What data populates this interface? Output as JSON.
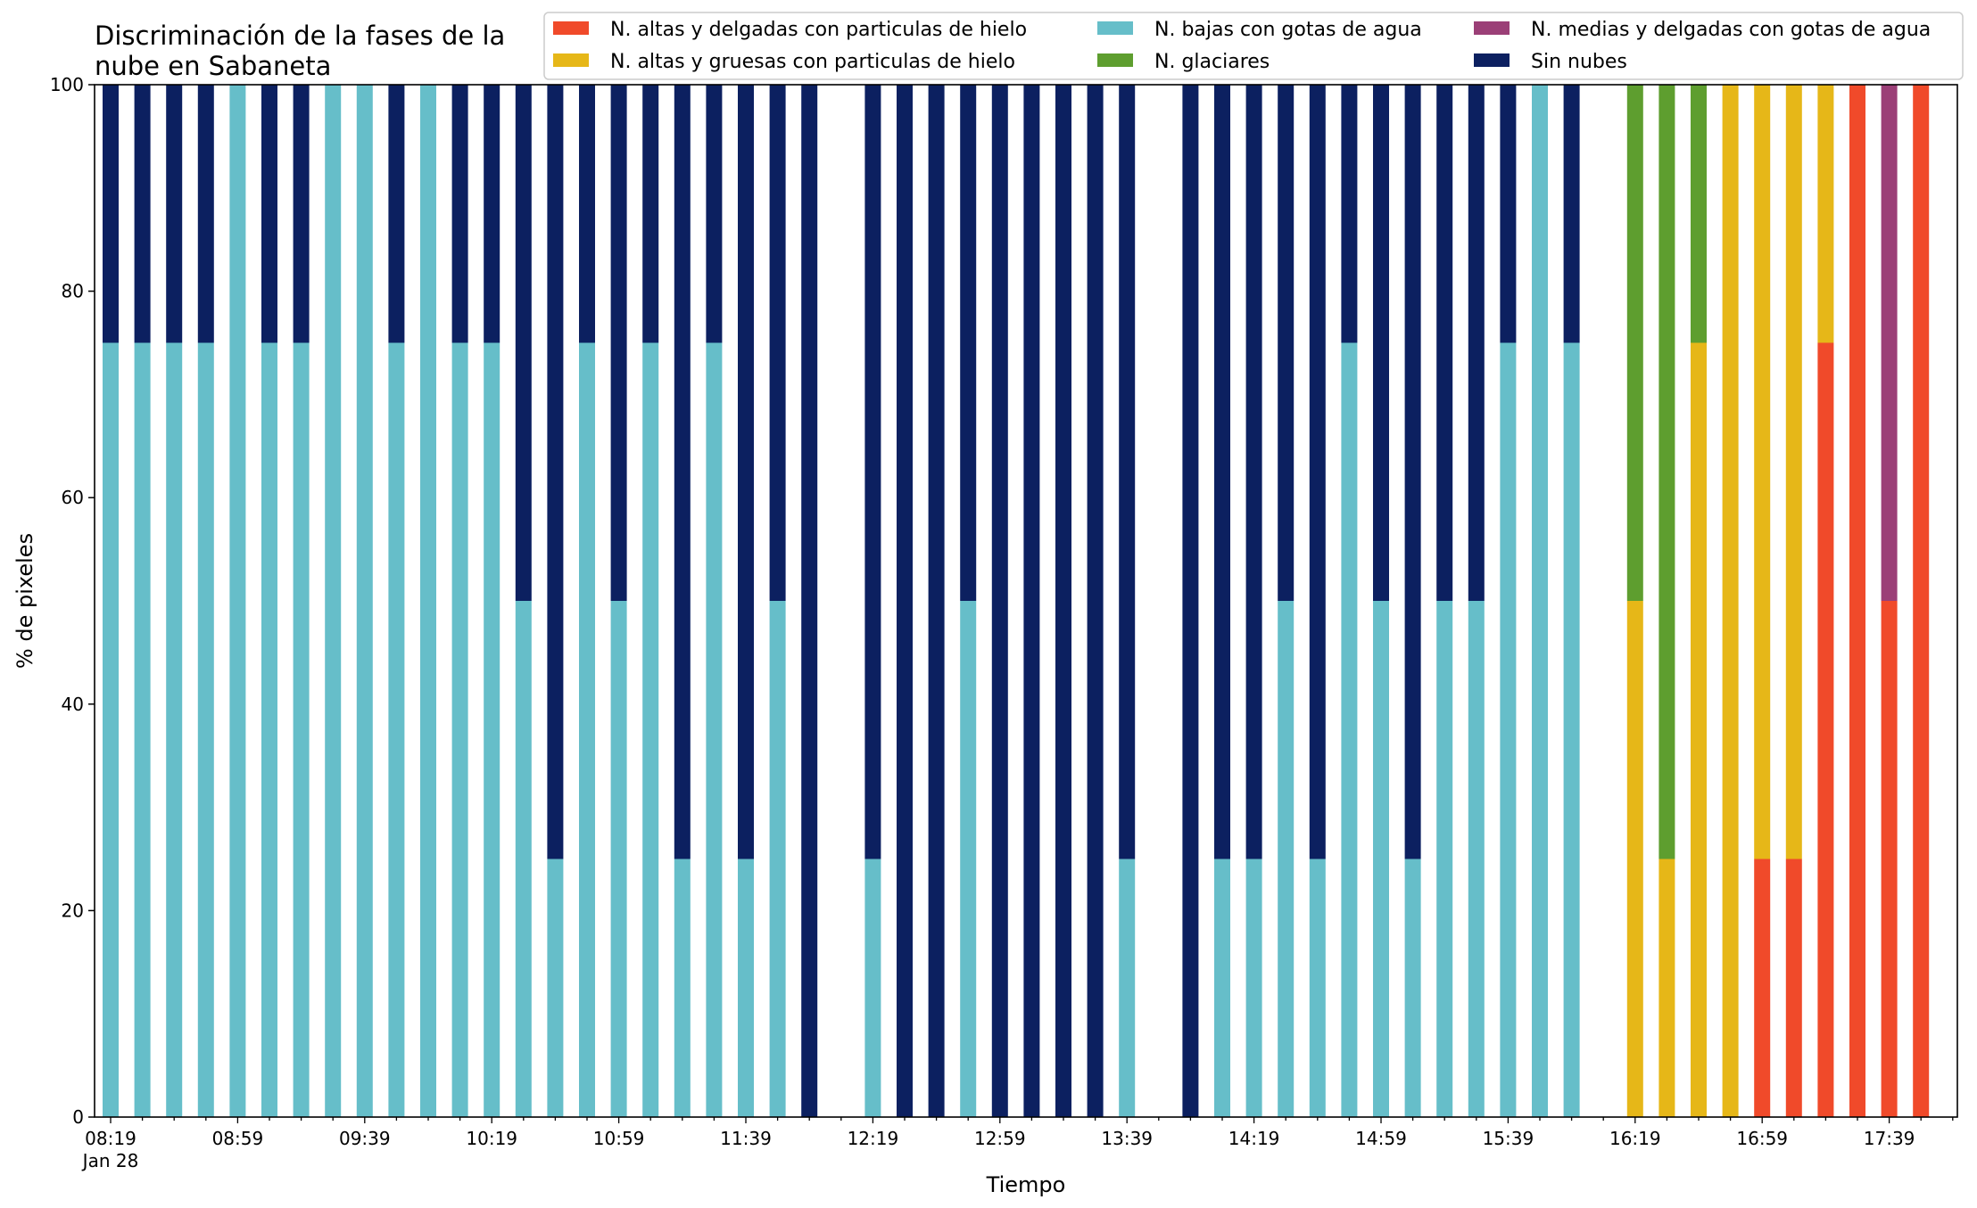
{
  "chart_data": {
    "type": "bar",
    "stacked": true,
    "title_lines": [
      "Discriminación de la fases de la",
      "nube en Sabaneta"
    ],
    "xlabel": "Tiempo",
    "ylabel": "% de pixeles",
    "ylim": [
      0,
      100
    ],
    "yticks": [
      "0",
      "20",
      "40",
      "60",
      "80",
      "100"
    ],
    "xtick_labels": [
      "08:19\nJan 28",
      "08:59",
      "09:39",
      "10:19",
      "10:59",
      "11:39",
      "12:19",
      "12:59",
      "13:39",
      "14:19",
      "14:59",
      "15:39",
      "16:19",
      "16:59",
      "17:39"
    ],
    "x_interval_minutes": 10,
    "x_start": "08:19",
    "grid": false,
    "legend_position": "top-right",
    "categories": [
      "08:19",
      "08:29",
      "08:39",
      "08:49",
      "08:59",
      "09:09",
      "09:19",
      "09:29",
      "09:39",
      "09:49",
      "09:59",
      "10:09",
      "10:19",
      "10:29",
      "10:39",
      "10:49",
      "10:59",
      "11:09",
      "11:19",
      "11:29",
      "11:39",
      "11:49",
      "11:59",
      "12:09",
      "12:19",
      "12:29",
      "12:39",
      "12:49",
      "12:59",
      "13:09",
      "13:19",
      "13:29",
      "13:39",
      "13:49",
      "13:59",
      "14:09",
      "14:19",
      "14:29",
      "14:39",
      "14:49",
      "14:59",
      "15:09",
      "15:19",
      "15:29",
      "15:39",
      "15:49",
      "15:59",
      "16:09",
      "16:19",
      "16:29",
      "16:39",
      "16:49",
      "16:59",
      "17:09",
      "17:19",
      "17:29",
      "17:39",
      "17:49"
    ],
    "series": [
      {
        "name": "N. altas y delgadas con particulas de hielo",
        "color": "#f04a2a",
        "values": [
          0,
          0,
          0,
          0,
          0,
          0,
          0,
          0,
          0,
          0,
          0,
          0,
          0,
          0,
          0,
          0,
          0,
          0,
          0,
          0,
          0,
          0,
          0,
          0,
          0,
          0,
          0,
          0,
          0,
          0,
          0,
          0,
          0,
          0,
          0,
          0,
          0,
          0,
          0,
          0,
          0,
          0,
          0,
          0,
          0,
          0,
          0,
          0,
          0,
          0,
          0,
          0,
          25,
          25,
          75,
          100,
          50,
          100
        ]
      },
      {
        "name": "N. altas y gruesas con particulas de hielo",
        "color": "#e6b718",
        "values": [
          0,
          0,
          0,
          0,
          0,
          0,
          0,
          0,
          0,
          0,
          0,
          0,
          0,
          0,
          0,
          0,
          0,
          0,
          0,
          0,
          0,
          0,
          0,
          0,
          0,
          0,
          0,
          0,
          0,
          0,
          0,
          0,
          0,
          0,
          0,
          0,
          0,
          0,
          0,
          0,
          0,
          0,
          0,
          0,
          0,
          0,
          0,
          0,
          50,
          25,
          75,
          100,
          75,
          75,
          25,
          0,
          0,
          0
        ]
      },
      {
        "name": "N. bajas con gotas de agua",
        "color": "#66bec9",
        "values": [
          75,
          75,
          75,
          75,
          100,
          75,
          75,
          100,
          100,
          75,
          100,
          75,
          75,
          50,
          25,
          75,
          50,
          75,
          25,
          75,
          25,
          50,
          0,
          0,
          25,
          0,
          0,
          50,
          0,
          0,
          0,
          0,
          25,
          0,
          0,
          25,
          25,
          50,
          25,
          75,
          50,
          25,
          50,
          50,
          75,
          100,
          75,
          0,
          0,
          0,
          0,
          0,
          0,
          0,
          0,
          0,
          0,
          0
        ]
      },
      {
        "name": "N. glaciares",
        "color": "#5e9e2f",
        "values": [
          0,
          0,
          0,
          0,
          0,
          0,
          0,
          0,
          0,
          0,
          0,
          0,
          0,
          0,
          0,
          0,
          0,
          0,
          0,
          0,
          0,
          0,
          0,
          0,
          0,
          0,
          0,
          0,
          0,
          0,
          0,
          0,
          0,
          0,
          0,
          0,
          0,
          0,
          0,
          0,
          0,
          0,
          0,
          0,
          0,
          0,
          0,
          0,
          50,
          75,
          25,
          0,
          0,
          0,
          0,
          0,
          0,
          0
        ]
      },
      {
        "name": "N. medias y delgadas con gotas de agua",
        "color": "#9b3f77",
        "values": [
          0,
          0,
          0,
          0,
          0,
          0,
          0,
          0,
          0,
          0,
          0,
          0,
          0,
          0,
          0,
          0,
          0,
          0,
          0,
          0,
          0,
          0,
          0,
          0,
          0,
          0,
          0,
          0,
          0,
          0,
          0,
          0,
          0,
          0,
          0,
          0,
          0,
          0,
          0,
          0,
          0,
          0,
          0,
          0,
          0,
          0,
          0,
          0,
          0,
          0,
          0,
          0,
          0,
          0,
          0,
          0,
          50,
          0
        ]
      },
      {
        "name": "Sin nubes",
        "color": "#0c2060",
        "values": [
          25,
          25,
          25,
          25,
          0,
          25,
          25,
          0,
          0,
          25,
          0,
          25,
          25,
          50,
          75,
          25,
          50,
          25,
          75,
          25,
          75,
          50,
          100,
          0,
          75,
          100,
          100,
          50,
          100,
          100,
          100,
          100,
          75,
          0,
          100,
          75,
          75,
          50,
          75,
          25,
          50,
          75,
          50,
          50,
          25,
          0,
          25,
          0,
          0,
          0,
          0,
          0,
          0,
          0,
          0,
          0,
          0,
          0
        ]
      }
    ],
    "legend_order": [
      0,
      1,
      2,
      3,
      4,
      5
    ]
  }
}
